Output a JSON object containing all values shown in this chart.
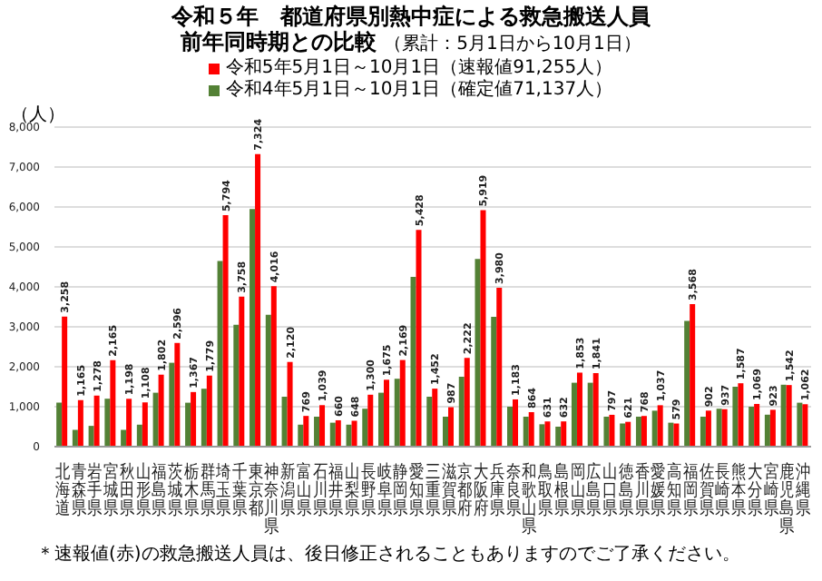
{
  "chart_data": {
    "type": "bar",
    "title": "令和５年　都道府県別熱中症による救急搬送人員",
    "subtitle": "前年同時期との比較",
    "ylabel": "（人）",
    "categories": [
      "北海道",
      "青森県",
      "岩手県",
      "宮城県",
      "秋田県",
      "山形県",
      "福島県",
      "茨城県",
      "栃木県",
      "群馬県",
      "埼玉県",
      "千葉県",
      "東京都",
      "神奈川県",
      "新潟県",
      "富山県",
      "石川県",
      "福井県",
      "山梨県",
      "長野県",
      "岐阜県",
      "静岡県",
      "愛知県",
      "三重県",
      "滋賀県",
      "京都府",
      "大阪府",
      "兵庫県",
      "奈良県",
      "和歌山県",
      "鳥取県",
      "島根県",
      "岡山県",
      "広島県",
      "山口県",
      "徳島県",
      "香川県",
      "愛媛県",
      "高知県",
      "福岡県",
      "佐賀県",
      "長崎県",
      "熊本県",
      "大分県",
      "宮崎県",
      "鹿児島県",
      "沖縄県"
    ],
    "series": [
      {
        "name": "令和4年5月1日～10月1日（確定値71,137人）",
        "color": "#538135",
        "values": [
          1100,
          420,
          520,
          1200,
          420,
          550,
          1350,
          2100,
          1100,
          1450,
          4650,
          3050,
          5950,
          3300,
          1250,
          550,
          750,
          600,
          550,
          950,
          1350,
          1700,
          4250,
          1250,
          750,
          1750,
          4700,
          3250,
          1000,
          750,
          560,
          500,
          1600,
          1600,
          750,
          580,
          750,
          900,
          600,
          3150,
          750,
          950,
          1500,
          1000,
          800,
          1550,
          1100
        ]
      },
      {
        "name": "令和5年5月1日～10月1日（速報値91,255人）",
        "color": "#ff0000",
        "values": [
          3258,
          1165,
          1278,
          2165,
          1198,
          1108,
          1802,
          2596,
          1367,
          1779,
          5794,
          3758,
          7324,
          4016,
          2120,
          769,
          1039,
          660,
          648,
          1300,
          1675,
          2169,
          5428,
          1452,
          987,
          2222,
          5919,
          3980,
          1183,
          864,
          631,
          632,
          1853,
          1841,
          797,
          621,
          768,
          1037,
          579,
          3568,
          902,
          937,
          1587,
          1069,
          923,
          1542,
          1062
        ],
        "value_labels": [
          "3,258",
          "1,165",
          "1,278",
          "2,165",
          "1,198",
          "1,108",
          "1,802",
          "2,596",
          "1,367",
          "1,779",
          "5,794",
          "3,758",
          "7,324",
          "4,016",
          "2,120",
          "769",
          "1,039",
          "660",
          "648",
          "1,300",
          "1,675",
          "2,169",
          "5,428",
          "1,452",
          "987",
          "2,222",
          "5,919",
          "3,980",
          "1,183",
          "864",
          "631",
          "632",
          "1,853",
          "1,841",
          "797",
          "621",
          "768",
          "1,037",
          "579",
          "3,568",
          "902",
          "937",
          "1,587",
          "1,069",
          "923",
          "1,542",
          "1,062"
        ]
      }
    ],
    "ylim": [
      0,
      8000
    ],
    "yticks": [
      0,
      {
        "value": 1000,
        "label": "1,000"
      },
      {
        "value": 2000,
        "label": "2,000"
      },
      {
        "value": 3000,
        "label": "3,000"
      },
      {
        "value": 4000,
        "label": "4,000"
      },
      {
        "value": 5000,
        "label": "5,000"
      },
      {
        "value": 6000,
        "label": "6,000"
      },
      {
        "value": 7000,
        "label": "7,000"
      },
      {
        "value": 8000,
        "label": "8,000"
      }
    ],
    "grid": "y",
    "legend": "top",
    "annotations": [
      "（累計：5月1日から10月1日）",
      "＊速報値(赤)の救急搬送人員は、後日修正されることもありますのでご了承ください。"
    ]
  }
}
